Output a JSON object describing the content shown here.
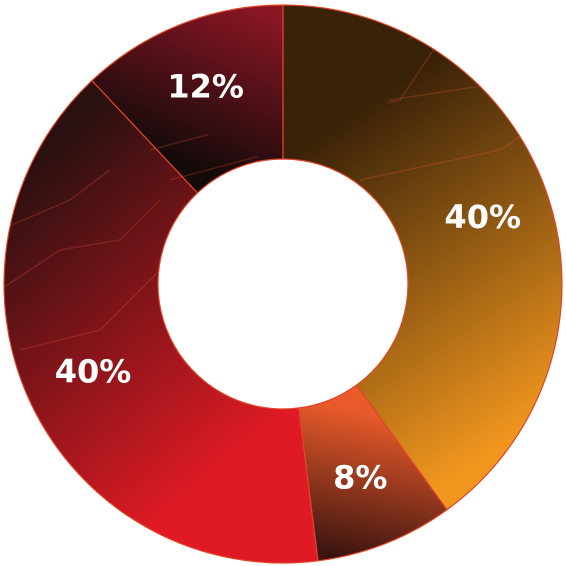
{
  "chart_data": {
    "type": "pie",
    "variant": "donut",
    "title": "",
    "slices": [
      {
        "label": "40%",
        "value": 40,
        "color_start": "#3a2208",
        "color_end": "#f0961e"
      },
      {
        "label": "8%",
        "value": 8,
        "color_start": "#e85a2a",
        "color_end": "#3a1410"
      },
      {
        "label": "40%",
        "value": 40,
        "color_start": "#e01a24",
        "color_end": "#2a1010"
      },
      {
        "label": "12%",
        "value": 12,
        "color_start": "#140a0a",
        "color_end": "#8a1624"
      }
    ],
    "legend": "none",
    "stroke_color": "#e0452a"
  }
}
